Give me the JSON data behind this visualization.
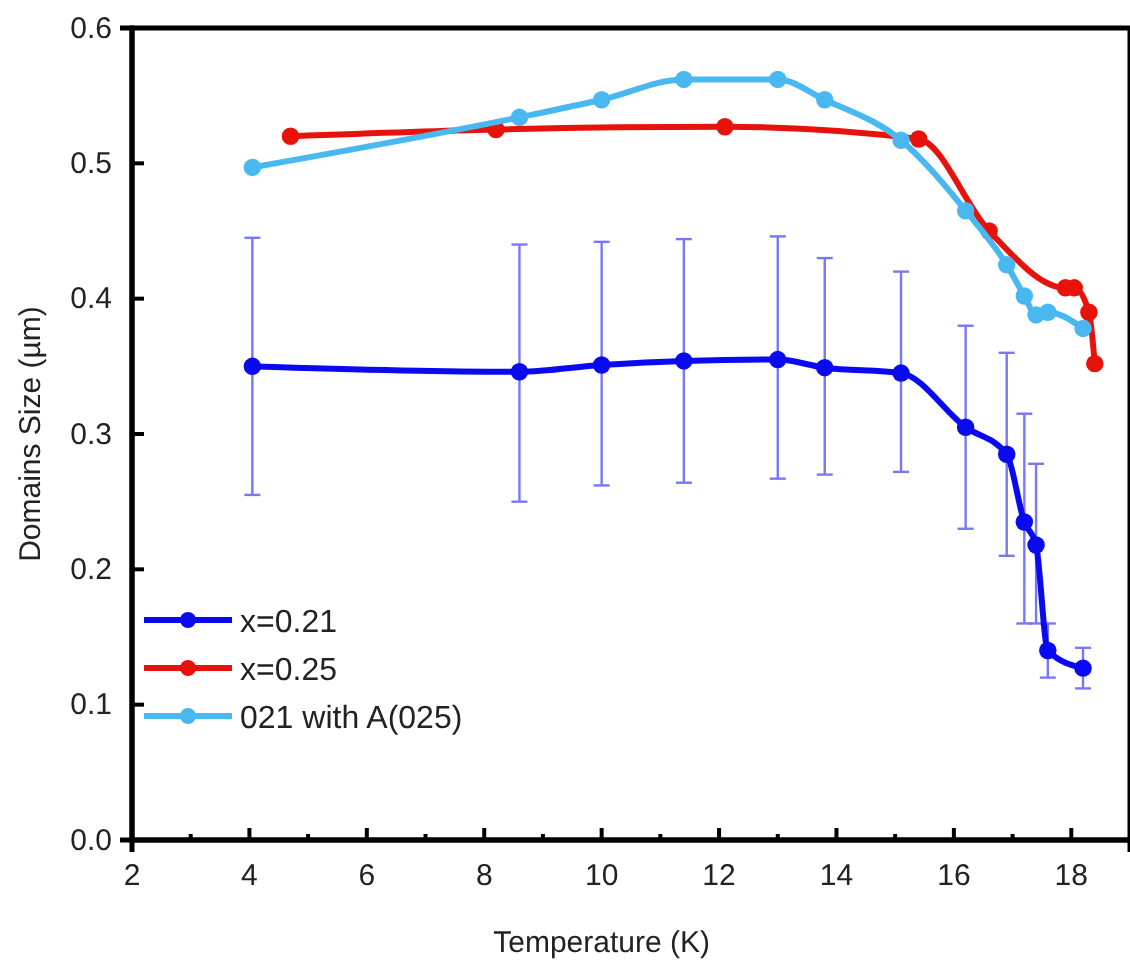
{
  "chart_data": {
    "type": "line",
    "xlabel": "Temperature (K)",
    "ylabel": "Domains Size (µm)",
    "xlim": [
      2,
      19
    ],
    "xticks": [
      2,
      4,
      6,
      8,
      10,
      12,
      14,
      16,
      18
    ],
    "ylim": [
      0,
      0.6
    ],
    "yticks": [
      {
        "value": 0,
        "label": "0.0"
      },
      {
        "value": 0.1,
        "label": "0.1"
      },
      {
        "value": 0.2,
        "label": "0.2"
      },
      {
        "value": 0.3,
        "label": "0.3"
      },
      {
        "value": 0.4,
        "label": "0.4"
      },
      {
        "value": 0.5,
        "label": "0.5"
      },
      {
        "value": 0.6,
        "label": "0.6"
      }
    ],
    "grid": false,
    "legend": "bottom left",
    "marker": "circle",
    "line_style": "solid",
    "series": [
      {
        "name": "x=0.21",
        "color": "#0a0af0",
        "x": [
          4.05,
          8.6,
          10,
          11.4,
          13,
          13.8,
          15.1,
          16.2,
          16.9,
          17.2,
          17.4,
          17.6,
          18.2
        ],
        "values": [
          0.35,
          0.346,
          0.351,
          0.354,
          0.355,
          0.349,
          0.345,
          0.305,
          0.285,
          0.235,
          0.218,
          0.14,
          0.127
        ],
        "errors": [
          [
            0.255,
            0.445
          ],
          [
            0.25,
            0.44
          ],
          [
            0.262,
            0.442
          ],
          [
            0.264,
            0.444
          ],
          [
            0.267,
            0.446
          ],
          [
            0.27,
            0.43
          ],
          [
            0.272,
            0.42
          ],
          [
            0.23,
            0.38
          ],
          [
            0.21,
            0.36
          ],
          [
            0.16,
            0.315
          ],
          [
            0.16,
            0.278
          ],
          [
            0.12,
            0.16
          ],
          [
            0.112,
            0.142
          ]
        ]
      },
      {
        "name": "x=0.25",
        "color": "#e8120c",
        "x": [
          4.7,
          8.2,
          12.1,
          15.4,
          16.6,
          17.9,
          18.05,
          18.3,
          18.4
        ],
        "values": [
          0.52,
          0.525,
          0.527,
          0.518,
          0.45,
          0.408,
          0.408,
          0.39,
          0.352
        ]
      },
      {
        "name": "021 with A(025)",
        "color": "#4ab8f0",
        "x": [
          4.05,
          8.6,
          10,
          11.4,
          13,
          13.8,
          15.1,
          16.2,
          16.9,
          17.2,
          17.4,
          17.6,
          18.2
        ],
        "values": [
          0.497,
          0.534,
          0.547,
          0.562,
          0.562,
          0.547,
          0.517,
          0.465,
          0.425,
          0.402,
          0.388,
          0.39,
          0.378
        ]
      }
    ]
  }
}
